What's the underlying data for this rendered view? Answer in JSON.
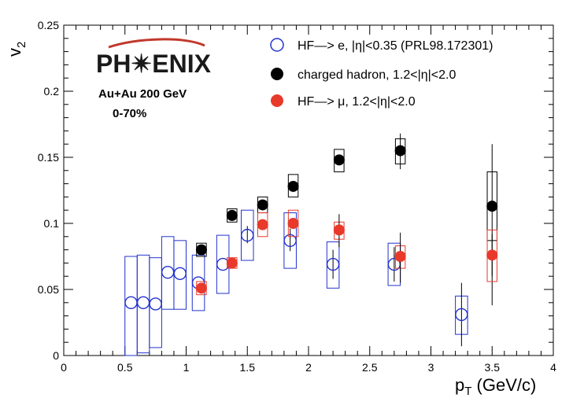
{
  "chart_data": {
    "type": "scatter",
    "xlabel": "p",
    "xlabel_sub": "T",
    "xlabel_unit": " (GeV/c)",
    "ylabel": "v",
    "ylabel_sub": "2",
    "xlim": [
      0,
      4
    ],
    "ylim": [
      0,
      0.25
    ],
    "x_ticks": [
      {
        "v": 0,
        "label": "0"
      },
      {
        "v": 0.5,
        "label": "0.5"
      },
      {
        "v": 1,
        "label": "1"
      },
      {
        "v": 1.5,
        "label": "1.5"
      },
      {
        "v": 2,
        "label": "2"
      },
      {
        "v": 2.5,
        "label": "2.5"
      },
      {
        "v": 3,
        "label": "3"
      },
      {
        "v": 3.5,
        "label": "3.5"
      },
      {
        "v": 4,
        "label": "4"
      }
    ],
    "y_ticks": [
      {
        "v": 0,
        "label": "0"
      },
      {
        "v": 0.05,
        "label": "0.05"
      },
      {
        "v": 0.1,
        "label": "0.1"
      },
      {
        "v": 0.15,
        "label": "0.15"
      },
      {
        "v": 0.2,
        "label": "0.2"
      },
      {
        "v": 0.25,
        "label": "0.25"
      }
    ],
    "grid": false,
    "legend_position": "top-right",
    "logo_text": "PH✴ENIX",
    "annotations": [
      "Au+Au 200 GeV",
      "0-70%"
    ],
    "series": [
      {
        "name": "HF—> e, |η|<0.35 (PRL98.172301)",
        "marker": "open-circle",
        "color": "#2233cc",
        "points": [
          {
            "x": 0.55,
            "y": 0.04,
            "sys": [
              0.0,
              0.075
            ],
            "box_w": 0.1
          },
          {
            "x": 0.65,
            "y": 0.04,
            "sys": [
              0.002,
              0.076
            ],
            "box_w": 0.1
          },
          {
            "x": 0.75,
            "y": 0.039,
            "sys": [
              0.006,
              0.074
            ],
            "box_w": 0.1
          },
          {
            "x": 0.85,
            "y": 0.063,
            "sys": [
              0.035,
              0.09
            ],
            "box_w": 0.1
          },
          {
            "x": 0.95,
            "y": 0.062,
            "sys": [
              0.035,
              0.087
            ],
            "box_w": 0.1
          },
          {
            "x": 1.1,
            "y": 0.055,
            "sys": [
              0.034,
              0.076
            ],
            "box_w": 0.1
          },
          {
            "x": 1.3,
            "y": 0.069,
            "sys": [
              0.047,
              0.091
            ],
            "box_w": 0.1
          },
          {
            "x": 1.5,
            "y": 0.091,
            "sys": [
              0.072,
              0.11
            ],
            "box_w": 0.1,
            "stat": [
              0.085,
              0.098
            ]
          },
          {
            "x": 1.85,
            "y": 0.087,
            "sys": [
              0.066,
              0.108
            ],
            "box_w": 0.1,
            "stat": [
              0.079,
              0.096
            ]
          },
          {
            "x": 2.2,
            "y": 0.069,
            "sys": [
              0.051,
              0.086
            ],
            "box_w": 0.1,
            "stat": [
              0.058,
              0.08
            ]
          },
          {
            "x": 2.7,
            "y": 0.069,
            "sys": [
              0.053,
              0.085
            ],
            "box_w": 0.1,
            "stat": [
              0.056,
              0.082
            ]
          },
          {
            "x": 3.25,
            "y": 0.031,
            "sys": [
              0.016,
              0.045
            ],
            "box_w": 0.1,
            "stat": [
              0.007,
              0.055
            ]
          }
        ]
      },
      {
        "name": "charged hadron, 1.2<|η|<2.0",
        "marker": "filled-circle",
        "color": "#000000",
        "points": [
          {
            "x": 1.125,
            "y": 0.08,
            "sys": [
              0.075,
              0.085
            ],
            "box_w": 0.08
          },
          {
            "x": 1.375,
            "y": 0.106,
            "sys": [
              0.101,
              0.111
            ],
            "box_w": 0.08
          },
          {
            "x": 1.625,
            "y": 0.114,
            "sys": [
              0.108,
              0.12
            ],
            "box_w": 0.08
          },
          {
            "x": 1.875,
            "y": 0.128,
            "sys": [
              0.12,
              0.137
            ],
            "box_w": 0.08
          },
          {
            "x": 2.25,
            "y": 0.148,
            "sys": [
              0.139,
              0.156
            ],
            "box_w": 0.08
          },
          {
            "x": 2.75,
            "y": 0.155,
            "sys": [
              0.145,
              0.164
            ],
            "box_w": 0.08,
            "stat": [
              0.141,
              0.168
            ]
          },
          {
            "x": 3.5,
            "y": 0.113,
            "sys": [
              0.087,
              0.139
            ],
            "box_w": 0.08,
            "stat": [
              0.038,
              0.16
            ]
          }
        ]
      },
      {
        "name": "HF—> μ, 1.2<|η|<2.0",
        "marker": "filled-circle",
        "color": "#e8392b",
        "points": [
          {
            "x": 1.125,
            "y": 0.051,
            "sys": [
              0.046,
              0.056
            ],
            "box_w": 0.08
          },
          {
            "x": 1.375,
            "y": 0.07,
            "sys": [
              0.066,
              0.074
            ],
            "box_w": 0.08
          },
          {
            "x": 1.625,
            "y": 0.099,
            "sys": [
              0.09,
              0.108
            ],
            "box_w": 0.08
          },
          {
            "x": 1.875,
            "y": 0.1,
            "sys": [
              0.09,
              0.11
            ],
            "box_w": 0.08
          },
          {
            "x": 2.25,
            "y": 0.095,
            "sys": [
              0.088,
              0.101
            ],
            "box_w": 0.08,
            "stat": [
              0.082,
              0.107
            ]
          },
          {
            "x": 2.75,
            "y": 0.075,
            "sys": [
              0.066,
              0.083
            ],
            "box_w": 0.08,
            "stat": [
              0.055,
              0.093
            ]
          },
          {
            "x": 3.5,
            "y": 0.076,
            "sys": [
              0.056,
              0.095
            ],
            "box_w": 0.08,
            "stat": [
              0.06,
              0.092
            ]
          }
        ]
      }
    ]
  }
}
